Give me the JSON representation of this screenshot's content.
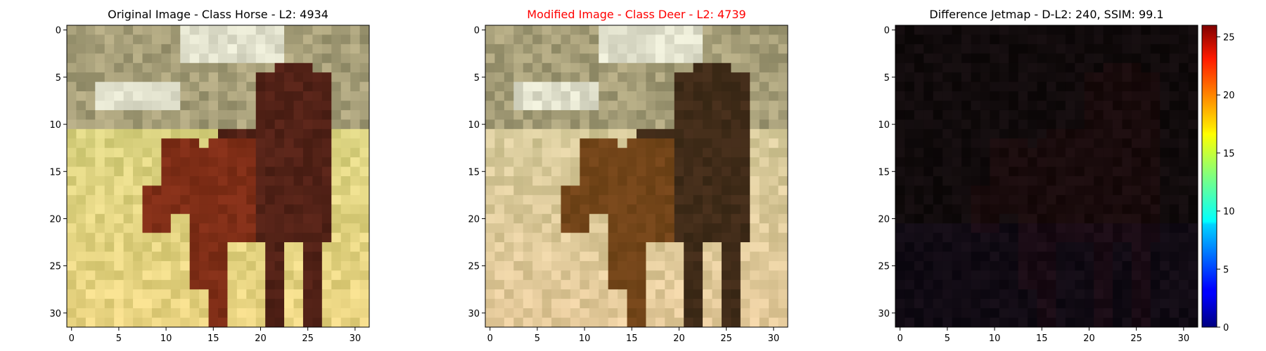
{
  "chart_data": [
    {
      "type": "heatmap",
      "title": "Original Image - Class Horse - L2: 4934",
      "title_color": "#000000",
      "xlim": [
        -0.5,
        31.5
      ],
      "ylim": [
        31.5,
        -0.5
      ],
      "xticks": [
        0,
        5,
        10,
        15,
        20,
        25,
        30
      ],
      "yticks": [
        0,
        5,
        10,
        15,
        20,
        25,
        30
      ],
      "grid": false,
      "content": "32x32 RGB image of a dark brown horse standing on yellow-green grass with a blurred olive background"
    },
    {
      "type": "heatmap",
      "title": "Modified Image - Class Deer - L2: 4739",
      "title_color": "#ff0000",
      "xlim": [
        -0.5,
        31.5
      ],
      "ylim": [
        31.5,
        -0.5
      ],
      "xticks": [
        0,
        5,
        10,
        15,
        20,
        25,
        30
      ],
      "yticks": [
        0,
        5,
        10,
        15,
        20,
        25,
        30
      ],
      "grid": false,
      "content": "32x32 RGB adversarially modified image, visually almost identical to the original"
    },
    {
      "type": "heatmap",
      "title": "Difference Jetmap - D-L2: 240, SSIM: 99.1",
      "title_color": "#000000",
      "xlim": [
        -0.5,
        31.5
      ],
      "ylim": [
        31.5,
        -0.5
      ],
      "xticks": [
        0,
        5,
        10,
        15,
        20,
        25,
        30
      ],
      "yticks": [
        0,
        5,
        10,
        15,
        20,
        25,
        30
      ],
      "grid": false,
      "colormap": "jet",
      "colorbar": {
        "min": 0,
        "max": 26,
        "ticks": [
          0,
          5,
          10,
          15,
          20,
          25
        ]
      },
      "content": "32x32 near-black difference map; values mostly close to 0"
    }
  ]
}
